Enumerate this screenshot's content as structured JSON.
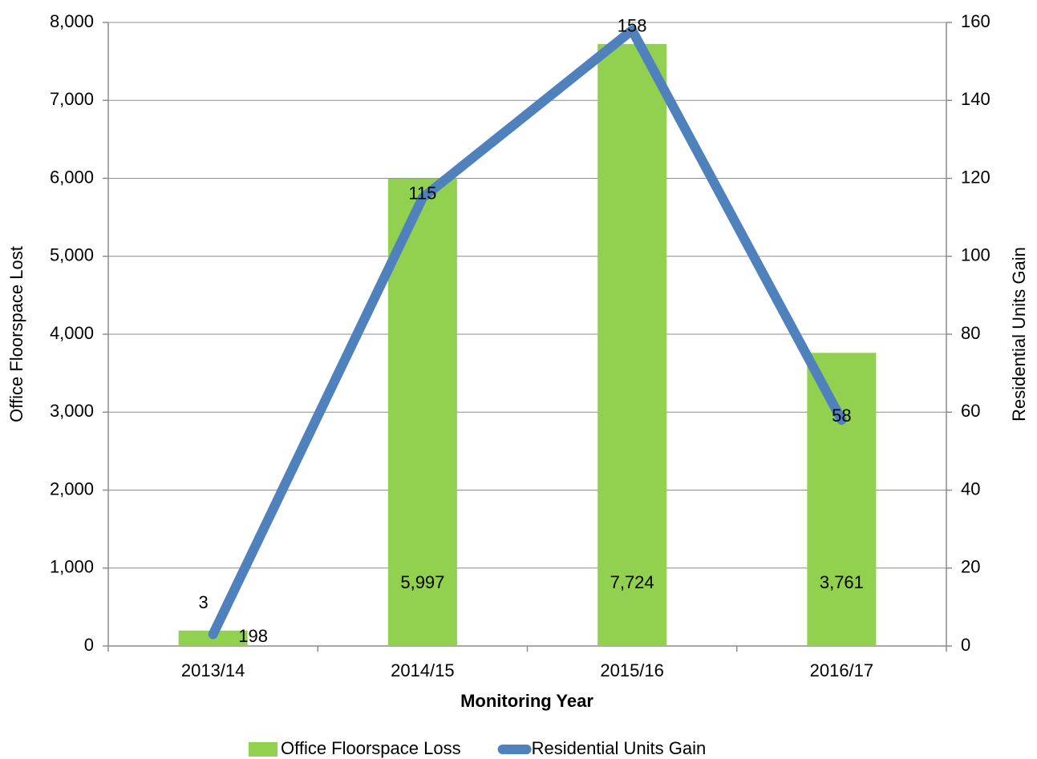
{
  "chart_data": {
    "type": "bar-line",
    "categories": [
      "2013/14",
      "2014/15",
      "2015/16",
      "2016/17"
    ],
    "x_label": "Monitoring Year",
    "y_label": "Office Floorspace Lost",
    "y2_label": "Residential Units Gain",
    "ylim": [
      0,
      8000
    ],
    "yticks": [
      0,
      {
        "value": 1000,
        "label": "1,000"
      },
      {
        "value": 2000,
        "label": "2,000"
      },
      {
        "value": 3000,
        "label": "3,000"
      },
      {
        "value": 4000,
        "label": "4,000"
      },
      {
        "value": 5000,
        "label": "5,000"
      },
      {
        "value": 6000,
        "label": "6,000"
      },
      {
        "value": 7000,
        "label": "7,000"
      },
      {
        "value": 8000,
        "label": "8,000"
      }
    ],
    "y2lim": [
      0,
      160
    ],
    "y2ticks": [
      0,
      20,
      40,
      60,
      80,
      100,
      120,
      140,
      160
    ],
    "grid": true,
    "legend": "bottom",
    "series": [
      {
        "name": "Office Floorspace Loss",
        "type": "bar",
        "color": "#92d050",
        "values": [
          198,
          5997,
          7724,
          3761
        ],
        "value_labels": [
          "198",
          "5,997",
          "7,724",
          "3,761"
        ]
      },
      {
        "name": "Residential Units Gain",
        "type": "line",
        "axis": "y2",
        "color": "#4f81bd",
        "values": [
          3,
          115,
          158,
          58
        ]
      }
    ]
  }
}
